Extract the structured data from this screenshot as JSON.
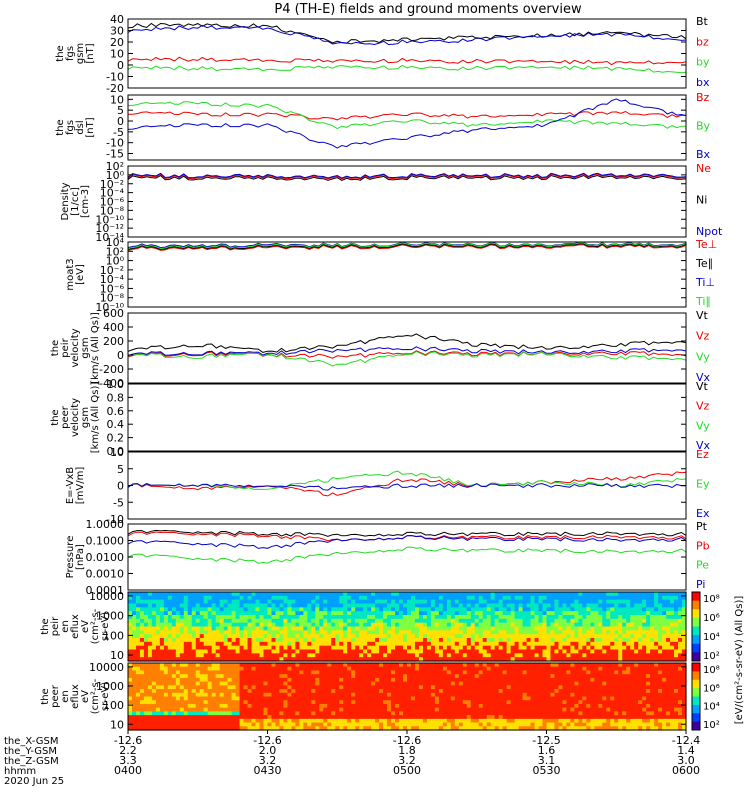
{
  "title": "P4 (TH-E) fields and ground moments overview",
  "colors": {
    "black": "#000000",
    "red": "#ee0000",
    "green": "#22dd22",
    "blue": "#0000cc",
    "spec_low": "#00a0ff",
    "spec_mid": "#00e8c0",
    "spec_high": "#ffe000",
    "spec_peak": "#ff2000"
  },
  "chart_data": [
    {
      "id": "fgs-gsm",
      "type": "line",
      "ylabel": [
        "the",
        "fgs",
        "gsm",
        "[nT]"
      ],
      "ylim": [
        -20,
        40
      ],
      "yticks": [
        "40",
        "30",
        "20",
        "10",
        "0",
        "-10",
        "-20"
      ],
      "tickvals": [
        40,
        30,
        20,
        10,
        0,
        -10,
        -20
      ],
      "legend": [
        {
          "name": "Bt",
          "color": "black"
        },
        {
          "name": "bz",
          "color": "red"
        },
        {
          "name": "by",
          "color": "green"
        },
        {
          "name": "bx",
          "color": "blue"
        }
      ],
      "x": [
        "0400",
        "0415",
        "0430",
        "0445",
        "0500",
        "0515",
        "0530",
        "0545",
        "0600"
      ],
      "series": [
        {
          "name": "Bt",
          "color": "black",
          "values": [
            34,
            35,
            34,
            20,
            22,
            24,
            26,
            28,
            24
          ]
        },
        {
          "name": "bz",
          "color": "red",
          "values": [
            5,
            5,
            4,
            3,
            4,
            3,
            3,
            2,
            3
          ]
        },
        {
          "name": "by",
          "color": "green",
          "values": [
            -2,
            -3,
            -4,
            -2,
            -2,
            -3,
            -2,
            -3,
            -6
          ]
        },
        {
          "name": "bx",
          "color": "blue",
          "values": [
            30,
            33,
            32,
            18,
            20,
            22,
            25,
            27,
            22
          ]
        }
      ]
    },
    {
      "id": "fgs-dsl",
      "type": "line",
      "ylabel": [
        "the",
        "fgs",
        "dsl",
        "[nT]"
      ],
      "ylim": [
        -18,
        12
      ],
      "yticks": [
        "10",
        "5",
        "0",
        "-5",
        "-10",
        "-15"
      ],
      "tickvals": [
        10,
        5,
        0,
        -5,
        -10,
        -15
      ],
      "legend": [
        {
          "name": "Bz",
          "color": "red"
        },
        {
          "name": "By",
          "color": "green"
        },
        {
          "name": "Bx",
          "color": "blue"
        }
      ],
      "x": [
        "0400",
        "0415",
        "0430",
        "0445",
        "0500",
        "0515",
        "0530",
        "0545",
        "0600"
      ],
      "series": [
        {
          "name": "Bz",
          "color": "red",
          "values": [
            4,
            3,
            3,
            1,
            3,
            2,
            3,
            4,
            2
          ]
        },
        {
          "name": "By",
          "color": "green",
          "values": [
            8,
            8,
            7,
            -3,
            0,
            -2,
            0,
            -1,
            -3
          ]
        },
        {
          "name": "Bx",
          "color": "blue",
          "values": [
            -3,
            -2,
            -2,
            -12,
            -8,
            -4,
            -2,
            10,
            2
          ]
        }
      ]
    },
    {
      "id": "density",
      "type": "line",
      "log": true,
      "ylabel": [
        "Density",
        "[1/cc]",
        "[cm-3]"
      ],
      "ylim": [
        -14,
        2
      ],
      "yticks": [
        "10²",
        "10⁰",
        "10⁻²",
        "10⁻⁴",
        "10⁻⁶",
        "10⁻⁸",
        "10⁻¹⁰",
        "10⁻¹²",
        "10⁻¹⁴"
      ],
      "tickvals": [
        2,
        0,
        -2,
        -4,
        -6,
        -8,
        -10,
        -12,
        -14
      ],
      "legend": [
        {
          "name": "Ne",
          "color": "red"
        },
        {
          "name": "Ni",
          "color": "black"
        },
        {
          "name": "Npot",
          "color": "blue"
        }
      ],
      "x": [
        "0400",
        "0415",
        "0430",
        "0445",
        "0500",
        "0515",
        "0530",
        "0545",
        "0600"
      ],
      "series": [
        {
          "name": "Ne",
          "color": "red",
          "values": [
            -0.3,
            -0.4,
            -0.5,
            -0.6,
            -0.4,
            -0.3,
            -0.3,
            -0.3,
            -0.4
          ]
        },
        {
          "name": "Ni",
          "color": "black",
          "values": [
            -0.6,
            -0.7,
            -0.8,
            -0.9,
            -0.7,
            -0.6,
            -0.6,
            -0.6,
            -0.7
          ]
        },
        {
          "name": "Npot",
          "color": "blue",
          "values": [
            -0.1,
            -0.2,
            -0.3,
            -0.4,
            -0.2,
            -0.1,
            -0.1,
            -0.1,
            -0.2
          ]
        }
      ]
    },
    {
      "id": "moat3",
      "type": "line",
      "log": true,
      "ylabel": [
        "moat3",
        "[eV]"
      ],
      "ylim": [
        -10,
        4
      ],
      "yticks": [
        "10⁴",
        "10²",
        "10⁰",
        "10⁻²",
        "10⁻⁴",
        "10⁻⁶",
        "10⁻⁸",
        "10⁻¹⁰"
      ],
      "tickvals": [
        4,
        2,
        0,
        -2,
        -4,
        -6,
        -8,
        -10
      ],
      "legend": [
        {
          "name": "Te⊥",
          "color": "red"
        },
        {
          "name": "Te∥",
          "color": "black"
        },
        {
          "name": "Ti⊥",
          "color": "blue"
        },
        {
          "name": "Ti∥",
          "color": "green"
        }
      ],
      "x": [
        "0400",
        "0415",
        "0430",
        "0445",
        "0500",
        "0515",
        "0530",
        "0545",
        "0600"
      ],
      "series": [
        {
          "name": "Te⊥",
          "color": "red",
          "values": [
            2.6,
            2.6,
            2.7,
            2.9,
            3.0,
            3.0,
            3.0,
            3.0,
            3.0
          ]
        },
        {
          "name": "Te∥",
          "color": "black",
          "values": [
            2.8,
            2.8,
            2.9,
            3.1,
            3.2,
            3.2,
            3.2,
            3.2,
            3.2
          ]
        },
        {
          "name": "Ti⊥",
          "color": "blue",
          "values": [
            3.2,
            3.2,
            3.3,
            3.4,
            3.5,
            3.5,
            3.5,
            3.5,
            3.5
          ]
        },
        {
          "name": "Ti∥",
          "color": "green",
          "values": [
            3.0,
            3.0,
            3.1,
            3.3,
            3.4,
            3.4,
            3.4,
            3.4,
            3.4
          ]
        }
      ]
    },
    {
      "id": "peir-velocity",
      "type": "line",
      "ylabel": [
        "the",
        "peir",
        "velocity",
        "gsm",
        "[km/s (All Qs)]"
      ],
      "ylim": [
        -400,
        600
      ],
      "yticks": [
        "600",
        "400",
        "200",
        "0",
        "-200",
        "-400"
      ],
      "tickvals": [
        600,
        400,
        200,
        0,
        -200,
        -400
      ],
      "legend": [
        {
          "name": "Vt",
          "color": "black"
        },
        {
          "name": "Vz",
          "color": "red"
        },
        {
          "name": "Vy",
          "color": "green"
        },
        {
          "name": "Vx",
          "color": "blue"
        }
      ],
      "x": [
        "0400",
        "0415",
        "0430",
        "0445",
        "0500",
        "0515",
        "0530",
        "0545",
        "0600"
      ],
      "series": [
        {
          "name": "Vt",
          "color": "black",
          "values": [
            80,
            150,
            60,
            120,
            300,
            140,
            100,
            150,
            200
          ]
        },
        {
          "name": "Vz",
          "color": "red",
          "values": [
            0,
            20,
            10,
            -30,
            40,
            10,
            20,
            30,
            10
          ]
        },
        {
          "name": "Vy",
          "color": "green",
          "values": [
            10,
            -20,
            20,
            -150,
            30,
            -10,
            20,
            -30,
            -50
          ]
        },
        {
          "name": "Vx",
          "color": "blue",
          "values": [
            20,
            30,
            30,
            60,
            100,
            50,
            40,
            60,
            80
          ]
        }
      ]
    },
    {
      "id": "peer-velocity",
      "type": "line",
      "ylabel": [
        "the",
        "peer",
        "velocity",
        "gsm",
        "[km/s (All Qs)]"
      ],
      "ylim": [
        0,
        1
      ],
      "yticks": [
        "1.0",
        "0.8",
        "0.6",
        "0.4",
        "0.2",
        "0.0"
      ],
      "tickvals": [
        1.0,
        0.8,
        0.6,
        0.4,
        0.2,
        0.0
      ],
      "legend": [
        {
          "name": "Vt",
          "color": "black"
        },
        {
          "name": "Vz",
          "color": "red"
        },
        {
          "name": "Vy",
          "color": "green"
        },
        {
          "name": "Vx",
          "color": "blue"
        }
      ],
      "x": [],
      "series": []
    },
    {
      "id": "efield",
      "type": "line",
      "ylabel": [
        "E=-VxB",
        "[mV/m]"
      ],
      "ylim": [
        -10,
        10
      ],
      "yticks": [
        "10",
        "5",
        "0",
        "-5",
        "-10"
      ],
      "tickvals": [
        10,
        5,
        0,
        -5,
        -10
      ],
      "legend": [
        {
          "name": "Ez",
          "color": "red"
        },
        {
          "name": "Ey",
          "color": "green"
        },
        {
          "name": "Ex",
          "color": "blue"
        }
      ],
      "x": [
        "0400",
        "0415",
        "0430",
        "0445",
        "0500",
        "0515",
        "0530",
        "0545",
        "0600"
      ],
      "series": [
        {
          "name": "Ez",
          "color": "red",
          "values": [
            0,
            -1,
            0,
            -3,
            2,
            0,
            1,
            2,
            4
          ]
        },
        {
          "name": "Ey",
          "color": "green",
          "values": [
            0,
            0,
            -1,
            2,
            4,
            0,
            1,
            0,
            2
          ]
        },
        {
          "name": "Ex",
          "color": "blue",
          "values": [
            0,
            0,
            0,
            -1,
            0,
            0,
            0,
            0,
            0
          ]
        }
      ]
    },
    {
      "id": "pressure",
      "type": "line",
      "log": true,
      "ylabel": [
        "Pressure",
        "[nPa]"
      ],
      "ylim": [
        -4,
        0
      ],
      "yticks": [
        "1.0000",
        "0.1000",
        "0.0100",
        "0.0010",
        "0.0001"
      ],
      "tickvals": [
        0,
        -1,
        -2,
        -3,
        -4
      ],
      "legend": [
        {
          "name": "Pt",
          "color": "black"
        },
        {
          "name": "Pb",
          "color": "red"
        },
        {
          "name": "Pe",
          "color": "green"
        },
        {
          "name": "Pi",
          "color": "blue"
        }
      ],
      "x": [
        "0400",
        "0415",
        "0430",
        "0445",
        "0500",
        "0515",
        "0530",
        "0545",
        "0600"
      ],
      "series": [
        {
          "name": "Pt",
          "color": "black",
          "values": [
            -0.5,
            -0.5,
            -0.6,
            -0.7,
            -0.6,
            -0.6,
            -0.6,
            -0.6,
            -0.6
          ]
        },
        {
          "name": "Pb",
          "color": "red",
          "values": [
            -0.6,
            -0.6,
            -0.7,
            -1.0,
            -0.8,
            -0.8,
            -0.8,
            -0.8,
            -0.8
          ]
        },
        {
          "name": "Pe",
          "color": "green",
          "values": [
            -1.9,
            -2.1,
            -2.3,
            -1.8,
            -1.5,
            -1.6,
            -1.6,
            -1.7,
            -1.6
          ]
        },
        {
          "name": "Pi",
          "color": "blue",
          "values": [
            -1.1,
            -1.2,
            -1.4,
            -1.0,
            -0.8,
            -0.9,
            -0.9,
            -1.0,
            -0.9
          ]
        }
      ]
    },
    {
      "id": "peir-eflux",
      "type": "heatmap",
      "ylabel": [
        "the",
        "peir",
        "en",
        "eflux",
        "eV",
        "(cm²-s-",
        "sr-eV)"
      ],
      "ylim": [
        0.7,
        4.2
      ],
      "yticks": [
        "10000",
        "1000",
        "100",
        "10"
      ],
      "tickvals": [
        4,
        3,
        2,
        1
      ],
      "x": [
        "0400",
        "0430",
        "0500",
        "0530",
        "0600"
      ]
    },
    {
      "id": "peer-eflux",
      "type": "heatmap",
      "ylabel": [
        "the",
        "peer",
        "en",
        "eflux",
        "eV",
        "(cm²-s-",
        "sr-eV)"
      ],
      "ylim": [
        0.7,
        4.2
      ],
      "yticks": [
        "10000",
        "1000",
        "100",
        "10"
      ],
      "tickvals": [
        4,
        3,
        2,
        1
      ],
      "x": [
        "0400",
        "0430",
        "0500",
        "0530",
        "0600"
      ]
    }
  ],
  "colorbar": {
    "label": "[eV/(cm²-s-sr-eV) (All Qs)]",
    "top": {
      "ticks": [
        "10⁸",
        "10⁶",
        "10⁴",
        "10²"
      ]
    },
    "bottom": {
      "ticks": [
        "10⁸",
        "10⁶",
        "10⁴",
        "10²"
      ]
    }
  },
  "xaxis": {
    "row_labels": [
      "the_X-GSM",
      "the_Y-GSM",
      "the_Z-GSM",
      "hhmm",
      "2020 Jun 25"
    ],
    "ticks": [
      {
        "X": "-12.6",
        "Y": "2.2",
        "Z": "3.3",
        "hhmm": "0400"
      },
      {
        "X": "-12.6",
        "Y": "2.0",
        "Z": "3.2",
        "hhmm": "0430"
      },
      {
        "X": "-12.6",
        "Y": "1.8",
        "Z": "3.2",
        "hhmm": "0500"
      },
      {
        "X": "-12.5",
        "Y": "1.6",
        "Z": "3.1",
        "hhmm": "0530"
      },
      {
        "X": "-12.4",
        "Y": "1.4",
        "Z": "3.0",
        "hhmm": "0600"
      }
    ]
  }
}
